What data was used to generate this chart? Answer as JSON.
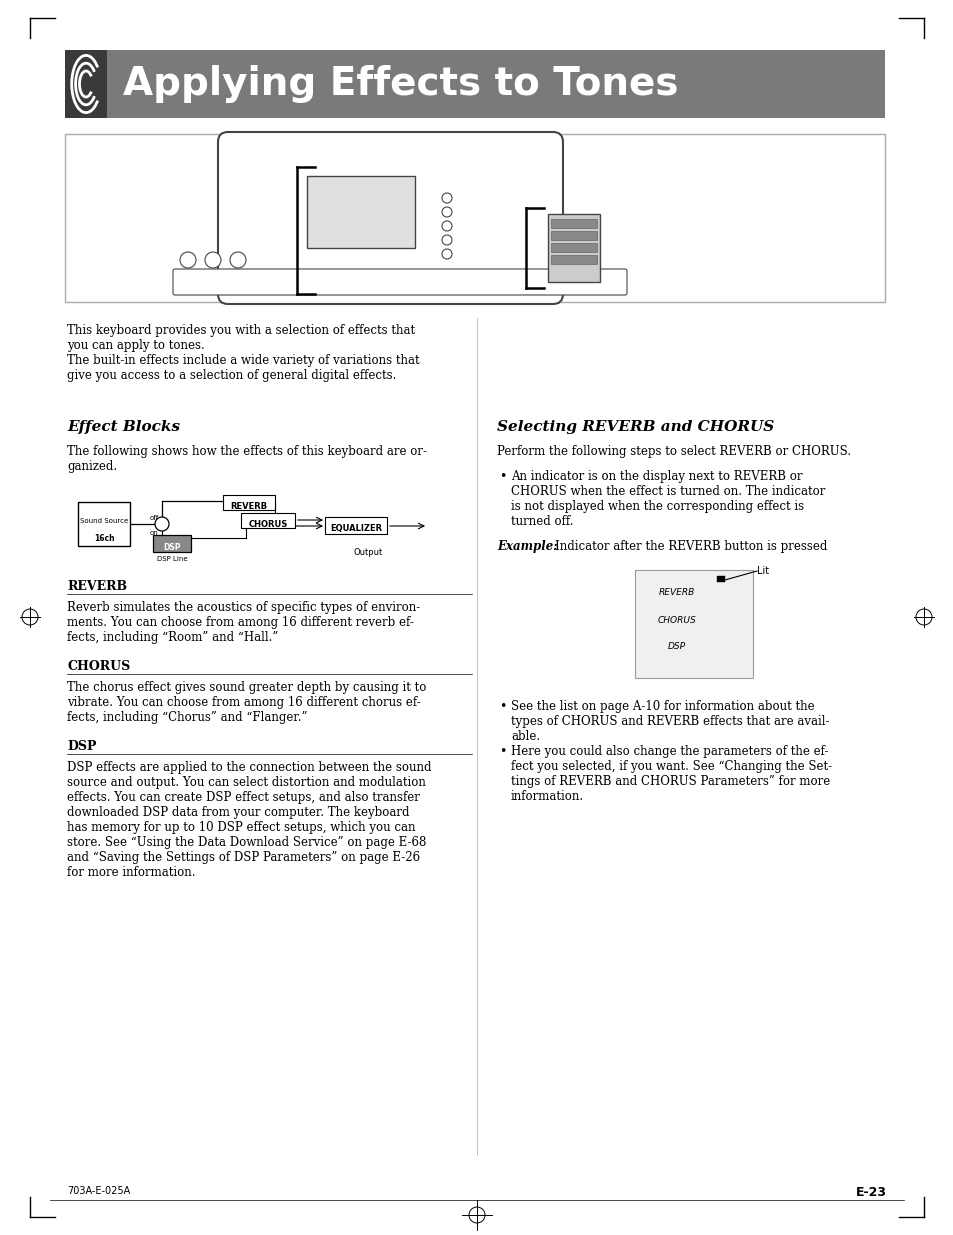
{
  "page_bg": "#ffffff",
  "header_bg": "#7a7a7a",
  "header_text": "Applying Effects to Tones",
  "header_text_color": "#ffffff",
  "header_font_size": 28,
  "body_font_size": 8.5,
  "section_title_font_size": 11,
  "subsection_title_font_size": 9,
  "text_color": "#000000",
  "footer_left": "703A-E-025A",
  "footer_right": "E-23",
  "intro_text": "This keyboard provides you with a selection of effects that\nyou can apply to tones.\nThe built-in effects include a wide variety of variations that\ngive you access to a selection of general digital effects.",
  "effect_blocks_title": "Effect Blocks",
  "effect_blocks_intro": "The following shows how the effects of this keyboard are or-\nganized.",
  "reverb_title": "REVERB",
  "reverb_text": "Reverb simulates the acoustics of specific types of environ-\nments. You can choose from among 16 different reverb ef-\nfects, including “Room” and “Hall.”",
  "chorus_title": "CHORUS",
  "chorus_text": "The chorus effect gives sound greater depth by causing it to\nvibrate. You can choose from among 16 different chorus ef-\nfects, including “Chorus” and “Flanger.”",
  "dsp_title": "DSP",
  "dsp_text": "DSP effects are applied to the connection between the sound\nsource and output. You can select distortion and modulation\neffects. You can create DSP effect setups, and also transfer\ndownloaded DSP data from your computer. The keyboard\nhas memory for up to 10 DSP effect setups, which you can\nstore. See “Using the Data Download Service” on page E-68\nand “Saving the Settings of DSP Parameters” on page E-26\nfor more information.",
  "selecting_title": "Selecting REVERB and CHORUS",
  "selecting_intro": "Perform the following steps to select REVERB or CHORUS.",
  "right_bullet1": "An indicator is on the display next to REVERB or\nCHORUS when the effect is turned on. The indicator\nis not displayed when the corresponding effect is\nturned off.",
  "right_example_label": "Example:",
  "right_example_text": "Indicator after the REVERB button is pressed",
  "right_bullet2": "See the list on page A-10 for information about the\ntypes of CHORUS and REVERB effects that are avail-\nable.",
  "right_bullet3": "Here you could also change the parameters of the ef-\nfect you selected, if you want. See “Changing the Set-\ntings of REVERB and CHORUS Parameters” for more\ninformation.",
  "lit_label": "Lit",
  "reverb_label": "REVERB",
  "chorus_label": "CHORUS",
  "dsp_label": "DSP",
  "diagram_sound_source": "Sound Source",
  "diagram_16ch": "16ch",
  "diagram_off": "off",
  "diagram_on": "on",
  "diagram_dsp": "DSP",
  "diagram_dsp_line": "DSP Line",
  "diagram_reverb": "REVERB",
  "diagram_chorus": "CHORUS",
  "diagram_equalizer": "EQUALIZER",
  "diagram_output": "Output"
}
